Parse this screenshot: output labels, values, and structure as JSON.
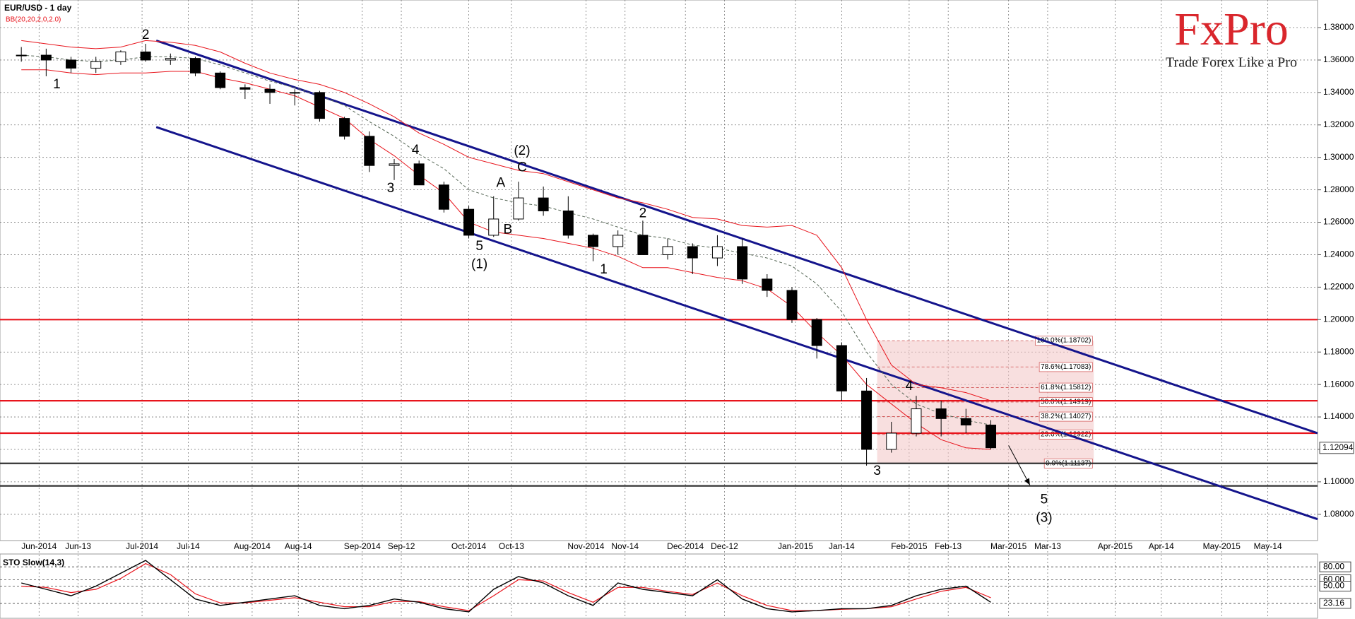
{
  "chart_data": {
    "type": "candlestick",
    "title": "EUR/USD - 1 day",
    "indicator": "BB(20,20,2,0,2.0)",
    "xlim": [
      "2014-05-22",
      "2015-05-28"
    ],
    "xticks": [
      {
        "value": "2014-06-02",
        "label": "Jun-2014"
      },
      {
        "value": "2014-06-13",
        "label": "Jun-13"
      },
      {
        "value": "2014-07-01",
        "label": "Jul-2014"
      },
      {
        "value": "2014-07-14",
        "label": "Jul-14"
      },
      {
        "value": "2014-08-01",
        "label": "Aug-2014"
      },
      {
        "value": "2014-08-14",
        "label": "Aug-14"
      },
      {
        "value": "2014-09-01",
        "label": "Sep-2014"
      },
      {
        "value": "2014-09-12",
        "label": "Sep-12"
      },
      {
        "value": "2014-10-01",
        "label": "Oct-2014"
      },
      {
        "value": "2014-10-13",
        "label": "Oct-13"
      },
      {
        "value": "2014-11-03",
        "label": "Nov-2014"
      },
      {
        "value": "2014-11-14",
        "label": "Nov-14"
      },
      {
        "value": "2014-12-01",
        "label": "Dec-2014"
      },
      {
        "value": "2014-12-12",
        "label": "Dec-12"
      },
      {
        "value": "2015-01-01",
        "label": "Jan-2015"
      },
      {
        "value": "2015-01-14",
        "label": "Jan-14"
      },
      {
        "value": "2015-02-02",
        "label": "Feb-2015"
      },
      {
        "value": "2015-02-13",
        "label": "Feb-13"
      },
      {
        "value": "2015-03-02",
        "label": "Mar-2015"
      },
      {
        "value": "2015-03-13",
        "label": "Mar-13"
      },
      {
        "value": "2015-04-01",
        "label": "Apr-2015"
      },
      {
        "value": "2015-04-14",
        "label": "Apr-14"
      },
      {
        "value": "2015-05-01",
        "label": "May-2015"
      },
      {
        "value": "2015-05-14",
        "label": "May-14"
      }
    ],
    "ylim": [
      1.0638,
      1.397
    ],
    "yticks": [
      {
        "value": 1.08,
        "label": "1.08000"
      },
      {
        "value": 1.1,
        "label": "1.10000"
      },
      {
        "value": 1.12,
        "label": "1.12000"
      },
      {
        "value": 1.14,
        "label": "1.14000"
      },
      {
        "value": 1.16,
        "label": "1.16000"
      },
      {
        "value": 1.18,
        "label": "1.18000"
      },
      {
        "value": 1.2,
        "label": "1.20000"
      },
      {
        "value": 1.22,
        "label": "1.22000"
      },
      {
        "value": 1.24,
        "label": "1.24000"
      },
      {
        "value": 1.26,
        "label": "1.26000"
      },
      {
        "value": 1.28,
        "label": "1.28000"
      },
      {
        "value": 1.3,
        "label": "1.30000"
      },
      {
        "value": 1.32,
        "label": "1.32000"
      },
      {
        "value": 1.34,
        "label": "1.34000"
      },
      {
        "value": 1.36,
        "label": "1.36000"
      },
      {
        "value": 1.38,
        "label": "1.38000"
      }
    ],
    "grid": true,
    "last_price": {
      "value": 1.12094,
      "label": "1.12094"
    },
    "x": [
      "2014-05-28",
      "2014-06-04",
      "2014-06-11",
      "2014-06-18",
      "2014-06-25",
      "2014-07-02",
      "2014-07-09",
      "2014-07-16",
      "2014-07-23",
      "2014-07-30",
      "2014-08-06",
      "2014-08-13",
      "2014-08-20",
      "2014-08-27",
      "2014-09-03",
      "2014-09-10",
      "2014-09-17",
      "2014-09-24",
      "2014-10-01",
      "2014-10-08",
      "2014-10-15",
      "2014-10-22",
      "2014-10-29",
      "2014-11-05",
      "2014-11-12",
      "2014-11-19",
      "2014-11-26",
      "2014-12-03",
      "2014-12-10",
      "2014-12-17",
      "2014-12-24",
      "2014-12-31",
      "2015-01-07",
      "2015-01-14",
      "2015-01-21",
      "2015-01-28",
      "2015-02-04",
      "2015-02-11",
      "2015-02-18",
      "2015-02-25"
    ],
    "open": [
      1.363,
      1.363,
      1.36,
      1.355,
      1.359,
      1.365,
      1.36,
      1.361,
      1.352,
      1.343,
      1.342,
      1.34,
      1.34,
      1.324,
      1.313,
      1.295,
      1.296,
      1.283,
      1.268,
      1.252,
      1.262,
      1.275,
      1.267,
      1.252,
      1.245,
      1.252,
      1.24,
      1.245,
      1.238,
      1.245,
      1.225,
      1.218,
      1.2,
      1.184,
      1.156,
      1.12,
      1.13,
      1.145,
      1.139,
      1.135
    ],
    "high": [
      1.368,
      1.367,
      1.362,
      1.362,
      1.366,
      1.37,
      1.364,
      1.362,
      1.353,
      1.345,
      1.345,
      1.342,
      1.341,
      1.325,
      1.316,
      1.299,
      1.298,
      1.285,
      1.27,
      1.276,
      1.285,
      1.282,
      1.276,
      1.253,
      1.255,
      1.261,
      1.25,
      1.247,
      1.252,
      1.25,
      1.228,
      1.22,
      1.201,
      1.186,
      1.164,
      1.137,
      1.153,
      1.15,
      1.145,
      1.138
    ],
    "low": [
      1.359,
      1.35,
      1.352,
      1.352,
      1.357,
      1.359,
      1.357,
      1.35,
      1.342,
      1.336,
      1.333,
      1.332,
      1.322,
      1.311,
      1.291,
      1.286,
      1.283,
      1.266,
      1.25,
      1.251,
      1.261,
      1.264,
      1.25,
      1.236,
      1.24,
      1.24,
      1.237,
      1.228,
      1.233,
      1.222,
      1.214,
      1.198,
      1.176,
      1.15,
      1.11,
      1.118,
      1.128,
      1.128,
      1.13,
      1.12
    ],
    "close": [
      1.363,
      1.36,
      1.355,
      1.359,
      1.365,
      1.36,
      1.361,
      1.352,
      1.343,
      1.342,
      1.34,
      1.34,
      1.324,
      1.313,
      1.295,
      1.296,
      1.283,
      1.268,
      1.252,
      1.262,
      1.275,
      1.267,
      1.252,
      1.245,
      1.252,
      1.24,
      1.245,
      1.238,
      1.245,
      1.225,
      1.218,
      1.2,
      1.184,
      1.156,
      1.12,
      1.13,
      1.145,
      1.139,
      1.135,
      1.121
    ],
    "bollinger": {
      "color": "#e8141c",
      "middle_color": "#556655",
      "upper": [
        1.372,
        1.37,
        1.368,
        1.367,
        1.368,
        1.372,
        1.371,
        1.369,
        1.365,
        1.358,
        1.352,
        1.348,
        1.345,
        1.34,
        1.333,
        1.325,
        1.315,
        1.308,
        1.3,
        1.296,
        1.292,
        1.29,
        1.285,
        1.28,
        1.275,
        1.272,
        1.268,
        1.263,
        1.262,
        1.258,
        1.257,
        1.258,
        1.252,
        1.232,
        1.2,
        1.172,
        1.16,
        1.158,
        1.155,
        1.15
      ],
      "middle": [
        1.363,
        1.362,
        1.36,
        1.359,
        1.36,
        1.362,
        1.362,
        1.361,
        1.357,
        1.352,
        1.347,
        1.343,
        1.338,
        1.332,
        1.322,
        1.313,
        1.302,
        1.293,
        1.28,
        1.275,
        1.272,
        1.27,
        1.266,
        1.262,
        1.257,
        1.252,
        1.25,
        1.246,
        1.244,
        1.241,
        1.238,
        1.233,
        1.222,
        1.205,
        1.18,
        1.16,
        1.148,
        1.142,
        1.138,
        1.135
      ],
      "lower": [
        1.354,
        1.354,
        1.352,
        1.351,
        1.352,
        1.352,
        1.353,
        1.353,
        1.349,
        1.346,
        1.342,
        1.338,
        1.331,
        1.324,
        1.311,
        1.301,
        1.289,
        1.278,
        1.26,
        1.254,
        1.252,
        1.25,
        1.247,
        1.244,
        1.239,
        1.232,
        1.232,
        1.229,
        1.226,
        1.224,
        1.219,
        1.208,
        1.192,
        1.178,
        1.16,
        1.148,
        1.136,
        1.126,
        1.121,
        1.12
      ]
    },
    "levels": [
      {
        "value": 1.2,
        "color": "#e8141c"
      },
      {
        "value": 1.15,
        "color": "#e8141c"
      },
      {
        "value": 1.13,
        "color": "#e8141c"
      },
      {
        "value": 1.1114,
        "color": "#333333"
      },
      {
        "value": 1.0975,
        "color": "#333333"
      }
    ],
    "channels": [
      {
        "x": [
          "2014-07-05",
          "2015-05-28"
        ],
        "y": [
          1.372,
          1.13
        ],
        "color": "#14148c"
      },
      {
        "x": [
          "2014-07-05",
          "2015-05-28"
        ],
        "y": [
          1.3187,
          1.077
        ],
        "color": "#14148c"
      }
    ],
    "fib": {
      "x": [
        "2015-01-24",
        "2015-03-26"
      ],
      "color": "#f3c9c9",
      "levels": [
        {
          "value": 1.18702,
          "label": "100.0%(1.18702)"
        },
        {
          "value": 1.17083,
          "label": "78.6%(1.17083)"
        },
        {
          "value": 1.15812,
          "label": "61.8%(1.15812)"
        },
        {
          "value": 1.14919,
          "label": "50.0%(1.14919)"
        },
        {
          "value": 1.14027,
          "label": "38.2%(1.14027)"
        },
        {
          "value": 1.12922,
          "label": "23.6%(1.12922)"
        },
        {
          "value": 1.11137,
          "label": "0.0%(1.11137)"
        }
      ]
    },
    "projection": {
      "x": [
        "2015-03-02",
        "2015-03-08"
      ],
      "y": [
        1.1224,
        1.098
      ]
    },
    "annotations": [
      {
        "text": "2",
        "x": "2014-07-02",
        "y": 1.3752
      },
      {
        "text": "1",
        "x": "2014-06-07",
        "y": 1.3448
      },
      {
        "text": "3",
        "x": "2014-09-09",
        "y": 1.2808
      },
      {
        "text": "4",
        "x": "2014-09-16",
        "y": 1.3043
      },
      {
        "text": "A",
        "x": "2014-10-10",
        "y": 1.284
      },
      {
        "text": "B",
        "x": "2014-10-12",
        "y": 1.2552
      },
      {
        "text": "5",
        "x": "2014-10-04",
        "y": 1.245
      },
      {
        "text": "(1)",
        "x": "2014-10-04",
        "y": 1.2339
      },
      {
        "text": "(2)",
        "x": "2014-10-16",
        "y": 1.3037
      },
      {
        "text": "C",
        "x": "2014-10-16",
        "y": 1.2936
      },
      {
        "text": "2",
        "x": "2014-11-19",
        "y": 1.2653
      },
      {
        "text": "1",
        "x": "2014-11-08",
        "y": 1.2307
      },
      {
        "text": "4",
        "x": "2015-02-02",
        "y": 1.1587
      },
      {
        "text": "3",
        "x": "2015-01-24",
        "y": 1.1064
      },
      {
        "text": "5",
        "x": "2015-03-12",
        "y": 1.0888
      },
      {
        "text": "(3)",
        "x": "2015-03-12",
        "y": 1.0776
      }
    ],
    "stochastic": {
      "title": "STO Slow(14,3)",
      "ylim": [
        0,
        100
      ],
      "yticks": [
        {
          "value": 80,
          "label": "80.00"
        },
        {
          "value": 60,
          "label": "60.00"
        },
        {
          "value": 50,
          "label": "50.00"
        },
        {
          "value": 23.16,
          "label": "23.16"
        }
      ],
      "k": {
        "color": "#000000",
        "values": [
          55,
          45,
          35,
          50,
          70,
          90,
          60,
          30,
          20,
          25,
          30,
          35,
          20,
          15,
          20,
          30,
          25,
          15,
          10,
          45,
          65,
          55,
          35,
          20,
          55,
          45,
          40,
          35,
          60,
          30,
          15,
          10,
          12,
          15,
          15,
          20,
          35,
          45,
          50,
          25
        ]
      },
      "d": {
        "color": "#e8141c",
        "values": [
          50,
          48,
          40,
          45,
          62,
          85,
          68,
          38,
          24,
          24,
          28,
          32,
          25,
          18,
          18,
          26,
          26,
          18,
          12,
          35,
          60,
          58,
          40,
          25,
          48,
          48,
          42,
          37,
          55,
          35,
          20,
          12,
          12,
          14,
          15,
          18,
          30,
          42,
          48,
          32
        ]
      }
    }
  },
  "logo": {
    "brand": "FxPro",
    "tagline": "Trade Forex Like a Pro"
  }
}
